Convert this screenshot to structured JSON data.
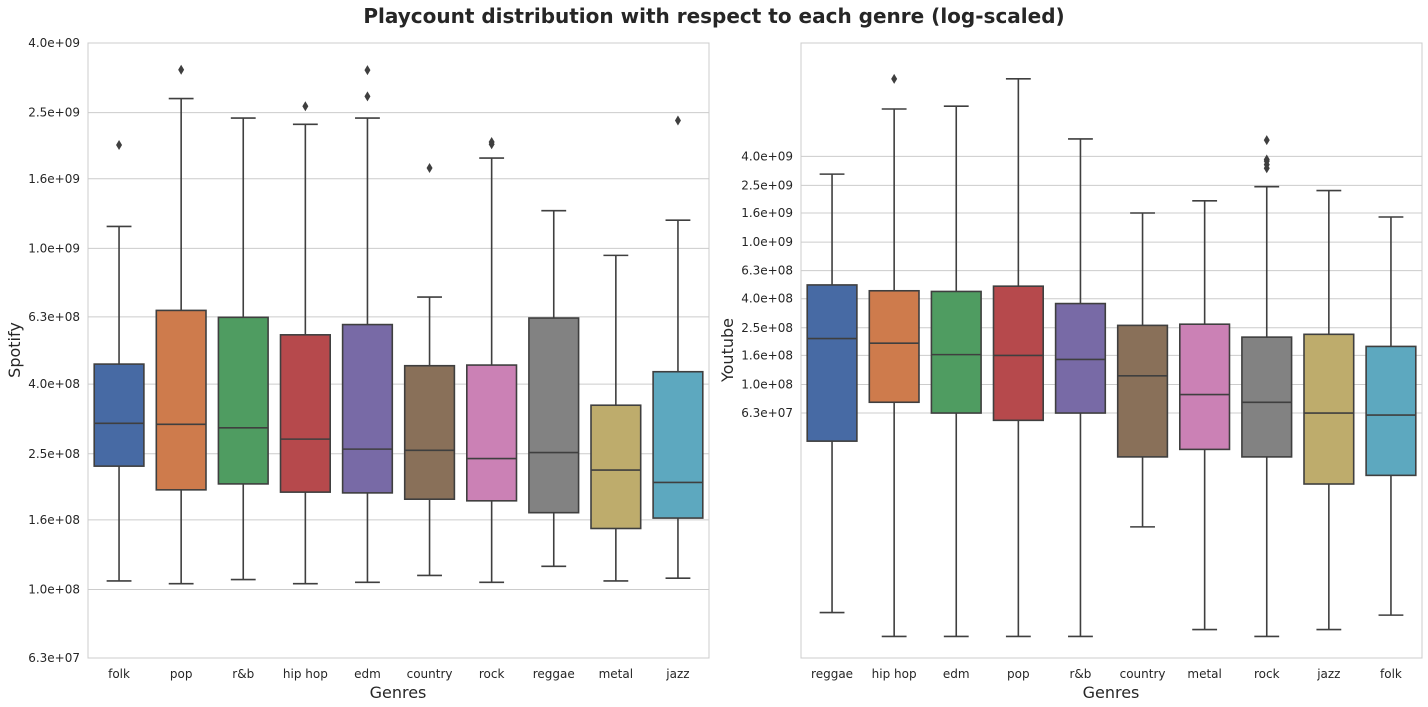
{
  "figure": {
    "title": "Playcount distribution with respect to each genre (log-scaled)"
  },
  "chart_data": [
    {
      "type": "box",
      "xlabel": "Genres",
      "ylabel": "Spotify",
      "yscale": "log",
      "ylim": [
        63000000,
        4000000000
      ],
      "yticks": [
        63000000,
        100000000,
        160000000,
        250000000,
        400000000,
        630000000,
        1000000000,
        1600000000,
        2500000000,
        4000000000
      ],
      "ytick_labels": [
        "6.3e+07",
        "1.0e+08",
        "1.6e+08",
        "2.5e+08",
        "4.0e+08",
        "6.3e+08",
        "1.0e+09",
        "1.6e+09",
        "2.5e+09",
        "4.0e+09"
      ],
      "grid": "horizontal",
      "categories": [
        "folk",
        "pop",
        "r&b",
        "hip hop",
        "edm",
        "country",
        "rock",
        "reggae",
        "metal",
        "jazz"
      ],
      "colors": [
        "#4c72b0",
        "#dd8452",
        "#55a868",
        "#c44e52",
        "#8172b3",
        "#937860",
        "#da8bc3",
        "#8c8c8c",
        "#ccb974",
        "#64b5cd"
      ],
      "boxes": [
        {
          "whislo": 106000000,
          "q1": 230000000,
          "median": 307000000,
          "q3": 458000000,
          "whishi": 1160000000,
          "fliers": [
            2010000000
          ]
        },
        {
          "whislo": 104000000,
          "q1": 196000000,
          "median": 305000000,
          "q3": 658000000,
          "whishi": 2750000000,
          "fliers": [
            3340000000
          ]
        },
        {
          "whislo": 107000000,
          "q1": 204000000,
          "median": 298000000,
          "q3": 628000000,
          "whishi": 2410000000,
          "fliers": []
        },
        {
          "whislo": 104000000,
          "q1": 193000000,
          "median": 276000000,
          "q3": 558000000,
          "whishi": 2310000000,
          "fliers": [
            2610000000
          ]
        },
        {
          "whislo": 105000000,
          "q1": 192000000,
          "median": 258000000,
          "q3": 598000000,
          "whishi": 2410000000,
          "fliers": [
            3330000000,
            2790000000
          ]
        },
        {
          "whislo": 110000000,
          "q1": 184000000,
          "median": 256000000,
          "q3": 453000000,
          "whishi": 720000000,
          "fliers": [
            1720000000
          ]
        },
        {
          "whislo": 105000000,
          "q1": 182000000,
          "median": 242000000,
          "q3": 455000000,
          "whishi": 1840000000,
          "fliers": [
            2020000000,
            2050000000
          ]
        },
        {
          "whislo": 117000000,
          "q1": 168000000,
          "median": 252000000,
          "q3": 625000000,
          "whishi": 1290000000,
          "fliers": []
        },
        {
          "whislo": 106000000,
          "q1": 151000000,
          "median": 224000000,
          "q3": 347000000,
          "whishi": 954000000,
          "fliers": []
        },
        {
          "whislo": 108000000,
          "q1": 162000000,
          "median": 206000000,
          "q3": 435000000,
          "whishi": 1210000000,
          "fliers": [
            2370000000
          ]
        }
      ]
    },
    {
      "type": "box",
      "xlabel": "Genres",
      "ylabel": "Youtube",
      "yscale": "log",
      "ylim": [
        1200000,
        25000000000
      ],
      "yticks": [
        63000000,
        100000000,
        160000000,
        250000000,
        400000000,
        630000000,
        1000000000,
        1600000000,
        2500000000,
        4000000000
      ],
      "ytick_labels": [
        "6.3e+07",
        "1.0e+08",
        "1.6e+08",
        "2.5e+08",
        "4.0e+08",
        "6.3e+08",
        "1.0e+09",
        "1.6e+09",
        "2.5e+09",
        "4.0e+09"
      ],
      "grid": "horizontal",
      "categories": [
        "reggae",
        "hip hop",
        "edm",
        "pop",
        "r&b",
        "country",
        "metal",
        "rock",
        "jazz",
        "folk"
      ],
      "colors": [
        "#4c72b0",
        "#dd8452",
        "#55a868",
        "#c44e52",
        "#8172b3",
        "#937860",
        "#da8bc3",
        "#8c8c8c",
        "#ccb974",
        "#64b5cd"
      ],
      "boxes": [
        {
          "whislo": 2500000,
          "q1": 40000000,
          "median": 210000000,
          "q3": 500000000,
          "whishi": 3000000000,
          "fliers": []
        },
        {
          "whislo": 1700000,
          "q1": 75000000,
          "median": 195000000,
          "q3": 455000000,
          "whishi": 8600000000,
          "fliers": [
            14000000000
          ]
        },
        {
          "whislo": 1700000,
          "q1": 63000000,
          "median": 162000000,
          "q3": 450000000,
          "whishi": 9000000000,
          "fliers": []
        },
        {
          "whislo": 1700000,
          "q1": 56000000,
          "median": 160000000,
          "q3": 490000000,
          "whishi": 14000000000,
          "fliers": []
        },
        {
          "whislo": 1700000,
          "q1": 63000000,
          "median": 150000000,
          "q3": 370000000,
          "whishi": 5300000000,
          "fliers": []
        },
        {
          "whislo": 10000000,
          "q1": 31000000,
          "median": 115000000,
          "q3": 260000000,
          "whishi": 1600000000,
          "fliers": []
        },
        {
          "whislo": 1900000,
          "q1": 35000000,
          "median": 85000000,
          "q3": 265000000,
          "whishi": 1950000000,
          "fliers": []
        },
        {
          "whislo": 1700000,
          "q1": 31000000,
          "median": 75000000,
          "q3": 215000000,
          "whishi": 2450000000,
          "fliers": [
            3300000000,
            3500000000,
            3700000000,
            3800000000,
            5200000000
          ]
        },
        {
          "whislo": 1900000,
          "q1": 20000000,
          "median": 63000000,
          "q3": 225000000,
          "whishi": 2300000000,
          "fliers": []
        },
        {
          "whislo": 2400000,
          "q1": 23000000,
          "median": 61000000,
          "q3": 185000000,
          "whishi": 1500000000,
          "fliers": []
        }
      ]
    }
  ]
}
